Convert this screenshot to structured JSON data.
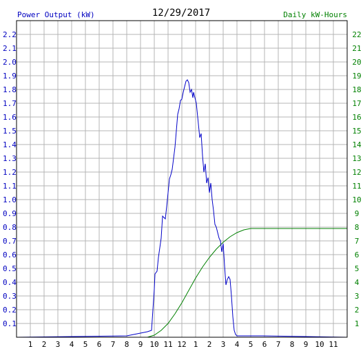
{
  "chart_data": {
    "type": "line",
    "title": "12/29/2017",
    "left_axis_label": "Power Output (kW)",
    "right_axis_label": "Daily kW-Hours",
    "colors": {
      "left_axis": "#0000c0",
      "right_axis": "#008000",
      "power_line": "#0000c8",
      "energy_line": "#008000",
      "grid": "#b4b4b4",
      "frame": "#000000",
      "text": "#000000"
    },
    "grid": true,
    "x_ticks": [
      "1",
      "2",
      "3",
      "4",
      "5",
      "6",
      "7",
      "8",
      "9",
      "10",
      "11",
      "12",
      "1",
      "2",
      "3",
      "4",
      "5",
      "6",
      "7",
      "8",
      "9",
      "10",
      "11"
    ],
    "x_range_hours": [
      0,
      24
    ],
    "y_left_range": [
      0,
      2.3
    ],
    "y_left_ticks": [
      "0.1",
      "0.2",
      "0.3",
      "0.4",
      "0.5",
      "0.6",
      "0.7",
      "0.8",
      "0.9",
      "1.0",
      "1.1",
      "1.2",
      "1.3",
      "1.4",
      "1.5",
      "1.6",
      "1.7",
      "1.8",
      "1.9",
      "2.0",
      "2.1",
      "2.2"
    ],
    "y_right_range": [
      0,
      23
    ],
    "y_right_ticks": [
      "1",
      "2",
      "3",
      "4",
      "5",
      "6",
      "7",
      "8",
      "9",
      "10",
      "11",
      "12",
      "13",
      "14",
      "15",
      "16",
      "17",
      "18",
      "19",
      "20",
      "21",
      "22"
    ],
    "series": [
      {
        "axis": "left",
        "hours": [
          8.0,
          8.5,
          9.0,
          9.5,
          9.8,
          9.9,
          10.0,
          10.05,
          10.2,
          10.3,
          10.5,
          10.6,
          10.8,
          10.9,
          11.0,
          11.1,
          11.2,
          11.3,
          11.4,
          11.5,
          11.6,
          11.7,
          11.8,
          11.9,
          12.0,
          12.1,
          12.2,
          12.3,
          12.4,
          12.5,
          12.6,
          12.7,
          12.8,
          12.85,
          12.9,
          13.0,
          13.05,
          13.1,
          13.2,
          13.3,
          13.4,
          13.5,
          13.6,
          13.7,
          13.8,
          13.9,
          14.0,
          14.1,
          14.2,
          14.3,
          14.4,
          14.5,
          14.6,
          14.7,
          14.8,
          14.9,
          15.0,
          15.1,
          15.2,
          15.3,
          15.4,
          15.5,
          15.6,
          15.7,
          15.8,
          15.9,
          16.0,
          16.1,
          16.2,
          16.3,
          16.4,
          16.5,
          16.6,
          16.7,
          16.8,
          16.9,
          17.0,
          17.2,
          17.5,
          17.8
        ],
        "values": [
          0.01,
          0.02,
          0.03,
          0.04,
          0.05,
          0.2,
          0.35,
          0.46,
          0.48,
          0.58,
          0.72,
          0.88,
          0.86,
          0.95,
          1.05,
          1.15,
          1.18,
          1.22,
          1.3,
          1.38,
          1.5,
          1.62,
          1.66,
          1.72,
          1.73,
          1.78,
          1.82,
          1.86,
          1.87,
          1.85,
          1.78,
          1.8,
          1.74,
          1.78,
          1.76,
          1.72,
          1.7,
          1.65,
          1.55,
          1.45,
          1.48,
          1.32,
          1.2,
          1.26,
          1.12,
          1.16,
          1.05,
          1.12,
          1.0,
          0.92,
          0.82,
          0.8,
          0.76,
          0.72,
          0.7,
          0.62,
          0.68,
          0.52,
          0.38,
          0.42,
          0.44,
          0.42,
          0.3,
          0.15,
          0.05,
          0.02,
          0.01,
          0.01,
          0.01,
          0.01,
          0.01,
          0.01,
          0.01,
          0.01,
          0.01,
          0.01,
          0.01,
          0.01,
          0.01,
          0.01
        ]
      },
      {
        "axis": "right",
        "hours": [
          9.5,
          10,
          10.5,
          11,
          11.5,
          12,
          12.5,
          13,
          13.5,
          14,
          14.5,
          15,
          15.5,
          16,
          16.5,
          17,
          18,
          19,
          20,
          21,
          22,
          23,
          24
        ],
        "values": [
          0,
          0.15,
          0.5,
          1.0,
          1.7,
          2.5,
          3.4,
          4.3,
          5.1,
          5.8,
          6.4,
          6.9,
          7.3,
          7.6,
          7.8,
          7.9,
          7.9,
          7.9,
          7.9,
          7.9,
          7.9,
          7.9,
          7.9
        ]
      }
    ]
  }
}
